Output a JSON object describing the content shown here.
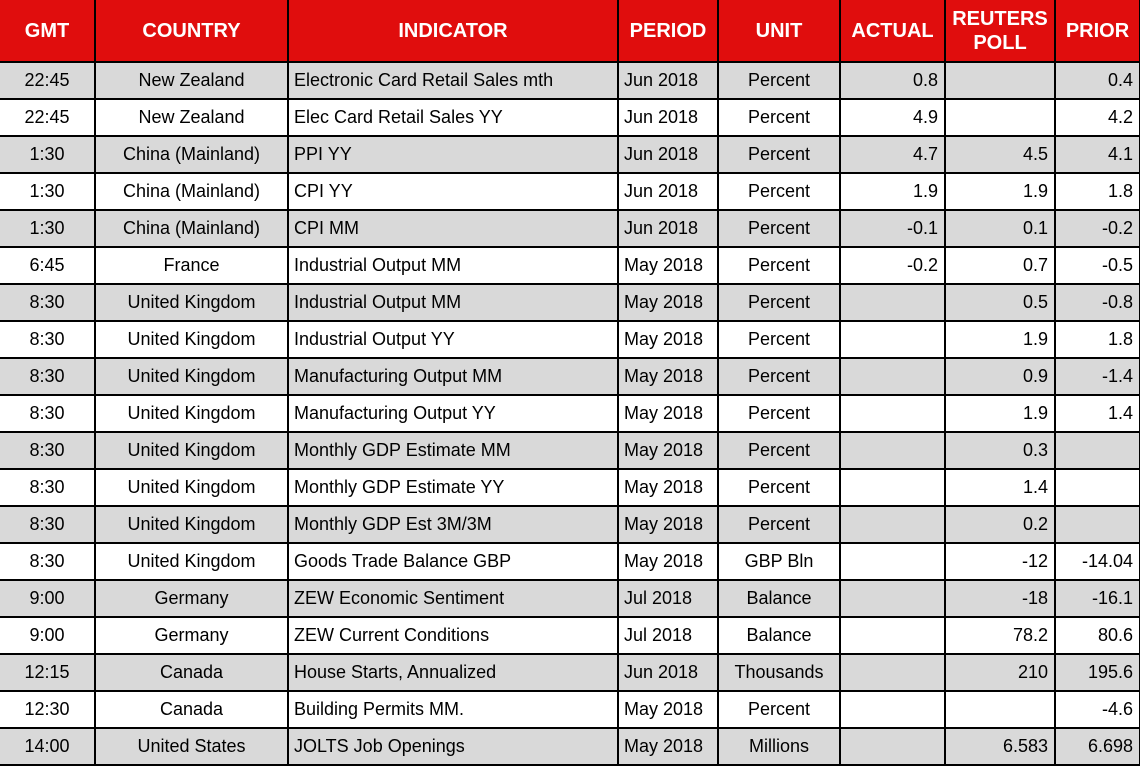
{
  "colors": {
    "header_bg": "#e00d0d",
    "header_text": "#ffffff",
    "row_bg": "#ffffff",
    "row_alt_bg": "#d9d9d9",
    "grid": "#000000"
  },
  "table": {
    "columns": [
      {
        "key": "gmt",
        "label": "GMT"
      },
      {
        "key": "country",
        "label": "COUNTRY"
      },
      {
        "key": "indicator",
        "label": "INDICATOR"
      },
      {
        "key": "period",
        "label": "PERIOD"
      },
      {
        "key": "unit",
        "label": "UNIT"
      },
      {
        "key": "actual",
        "label": "ACTUAL"
      },
      {
        "key": "reuters_poll",
        "label": "REUTERS POLL"
      },
      {
        "key": "prior",
        "label": "PRIOR"
      }
    ],
    "rows": [
      {
        "gmt": "22:45",
        "country": "New Zealand",
        "indicator": "Electronic Card Retail Sales mth",
        "period": "Jun 2018",
        "unit": "Percent",
        "actual": "0.8",
        "reuters_poll": "",
        "prior": "0.4"
      },
      {
        "gmt": "22:45",
        "country": "New Zealand",
        "indicator": "Elec Card Retail Sales YY",
        "period": "Jun 2018",
        "unit": "Percent",
        "actual": "4.9",
        "reuters_poll": "",
        "prior": "4.2"
      },
      {
        "gmt": "1:30",
        "country": "China (Mainland)",
        "indicator": "PPI YY",
        "period": "Jun 2018",
        "unit": "Percent",
        "actual": "4.7",
        "reuters_poll": "4.5",
        "prior": "4.1"
      },
      {
        "gmt": "1:30",
        "country": "China (Mainland)",
        "indicator": "CPI YY",
        "period": "Jun 2018",
        "unit": "Percent",
        "actual": "1.9",
        "reuters_poll": "1.9",
        "prior": "1.8"
      },
      {
        "gmt": "1:30",
        "country": "China (Mainland)",
        "indicator": "CPI MM",
        "period": "Jun 2018",
        "unit": "Percent",
        "actual": "-0.1",
        "reuters_poll": "0.1",
        "prior": "-0.2"
      },
      {
        "gmt": "6:45",
        "country": "France",
        "indicator": "Industrial Output MM",
        "period": "May 2018",
        "unit": "Percent",
        "actual": "-0.2",
        "reuters_poll": "0.7",
        "prior": "-0.5"
      },
      {
        "gmt": "8:30",
        "country": "United Kingdom",
        "indicator": "Industrial Output MM",
        "period": "May 2018",
        "unit": "Percent",
        "actual": "",
        "reuters_poll": "0.5",
        "prior": "-0.8"
      },
      {
        "gmt": "8:30",
        "country": "United Kingdom",
        "indicator": "Industrial Output YY",
        "period": "May 2018",
        "unit": "Percent",
        "actual": "",
        "reuters_poll": "1.9",
        "prior": "1.8"
      },
      {
        "gmt": "8:30",
        "country": "United Kingdom",
        "indicator": "Manufacturing Output MM",
        "period": "May 2018",
        "unit": "Percent",
        "actual": "",
        "reuters_poll": "0.9",
        "prior": "-1.4"
      },
      {
        "gmt": "8:30",
        "country": "United Kingdom",
        "indicator": "Manufacturing Output YY",
        "period": "May 2018",
        "unit": "Percent",
        "actual": "",
        "reuters_poll": "1.9",
        "prior": "1.4"
      },
      {
        "gmt": "8:30",
        "country": "United Kingdom",
        "indicator": "Monthly GDP Estimate MM",
        "period": "May 2018",
        "unit": "Percent",
        "actual": "",
        "reuters_poll": "0.3",
        "prior": ""
      },
      {
        "gmt": "8:30",
        "country": "United Kingdom",
        "indicator": "Monthly GDP Estimate YY",
        "period": "May 2018",
        "unit": "Percent",
        "actual": "",
        "reuters_poll": "1.4",
        "prior": ""
      },
      {
        "gmt": "8:30",
        "country": "United Kingdom",
        "indicator": "Monthly GDP Est 3M/3M",
        "period": "May 2018",
        "unit": "Percent",
        "actual": "",
        "reuters_poll": "0.2",
        "prior": ""
      },
      {
        "gmt": "8:30",
        "country": "United Kingdom",
        "indicator": "Goods Trade Balance GBP",
        "period": "May 2018",
        "unit": "GBP Bln",
        "actual": "",
        "reuters_poll": "-12",
        "prior": "-14.04"
      },
      {
        "gmt": "9:00",
        "country": "Germany",
        "indicator": "ZEW Economic Sentiment",
        "period": "Jul 2018",
        "unit": "Balance",
        "actual": "",
        "reuters_poll": "-18",
        "prior": "-16.1"
      },
      {
        "gmt": "9:00",
        "country": "Germany",
        "indicator": "ZEW Current Conditions",
        "period": "Jul 2018",
        "unit": "Balance",
        "actual": "",
        "reuters_poll": "78.2",
        "prior": "80.6"
      },
      {
        "gmt": "12:15",
        "country": "Canada",
        "indicator": "House Starts, Annualized",
        "period": "Jun 2018",
        "unit": "Thousands",
        "actual": "",
        "reuters_poll": "210",
        "prior": "195.6"
      },
      {
        "gmt": "12:30",
        "country": "Canada",
        "indicator": "Building Permits MM.",
        "period": "May 2018",
        "unit": "Percent",
        "actual": "",
        "reuters_poll": "",
        "prior": "-4.6"
      },
      {
        "gmt": "14:00",
        "country": "United States",
        "indicator": "JOLTS Job Openings",
        "period": "May 2018",
        "unit": "Millions",
        "actual": "",
        "reuters_poll": "6.583",
        "prior": "6.698"
      }
    ]
  }
}
